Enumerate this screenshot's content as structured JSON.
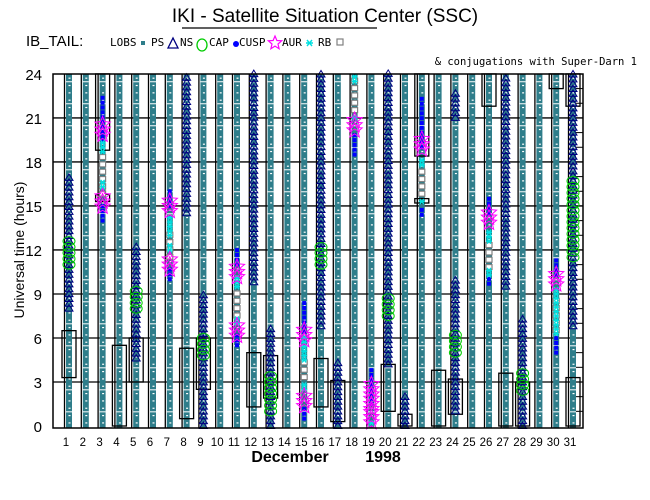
{
  "chart_data": {
    "type": "scatter",
    "title": "IKI - Satellite Situation Center (SSC)",
    "subtitle": "& conjugations with Super-Darn 1",
    "mission_label": "IB_TAIL:",
    "legend": [
      {
        "label": "LOBS",
        "symbol": "square-filled",
        "color": "#2e7d8a"
      },
      {
        "label": "PS",
        "symbol": "triangle",
        "color": "#000080"
      },
      {
        "label": "NS",
        "symbol": "circle",
        "color": "#00cc00"
      },
      {
        "label": "CAP",
        "symbol": "dot",
        "color": "#0000ff"
      },
      {
        "label": "CUSP",
        "symbol": "star",
        "color": "#ff00ff"
      },
      {
        "label": "AUR",
        "symbol": "asterisk",
        "color": "#00e0e0"
      },
      {
        "label": "RB",
        "symbol": "square-open",
        "color": "#808080"
      }
    ],
    "ylabel": "Universal time (hours)",
    "xlabel_month": "December",
    "xlabel_year": "1998",
    "xlim": [
      1,
      31
    ],
    "ylim": [
      0,
      24
    ],
    "yticks": [
      0,
      3,
      6,
      9,
      12,
      15,
      18,
      21,
      24
    ],
    "xticks": [
      1,
      2,
      3,
      4,
      5,
      6,
      7,
      8,
      9,
      10,
      11,
      12,
      13,
      14,
      15,
      16,
      17,
      18,
      19,
      20,
      21,
      22,
      23,
      24,
      25,
      26,
      27,
      28,
      29,
      30,
      31
    ],
    "grid": true,
    "lobs_days": [
      1,
      2,
      3,
      4,
      5,
      6,
      7,
      8,
      9,
      10,
      11,
      12,
      13,
      14,
      15,
      16,
      17,
      18,
      19,
      20,
      21,
      22,
      23,
      24,
      25,
      26,
      27,
      28,
      29,
      30,
      31
    ],
    "triangle_segments": [
      [
        1,
        8,
        17
      ],
      [
        5,
        4.6,
        12.2
      ],
      [
        8,
        14.5,
        24
      ],
      [
        9,
        0,
        9
      ],
      [
        12,
        9.8,
        24
      ],
      [
        13,
        0,
        6.9
      ],
      [
        16,
        6.8,
        24
      ],
      [
        17,
        0,
        4.6
      ],
      [
        20,
        4.2,
        24
      ],
      [
        21,
        0,
        2.2
      ],
      [
        24,
        21,
        22.8
      ],
      [
        24,
        1,
        10.2
      ],
      [
        27,
        9.5,
        24
      ],
      [
        28,
        0,
        7.5
      ],
      [
        31,
        6.8,
        24
      ]
    ],
    "circle_segments": [
      [
        1,
        11,
        12.7
      ],
      [
        5,
        8,
        9.3
      ],
      [
        9,
        4.8,
        6.2
      ],
      [
        13,
        1,
        3.5
      ],
      [
        16,
        11,
        12.5
      ],
      [
        20,
        7.5,
        9
      ],
      [
        24,
        5,
        6.3
      ],
      [
        28,
        2.4,
        3.6
      ],
      [
        31,
        11.5,
        17
      ]
    ],
    "dot_segments": [
      [
        3,
        19.4,
        22.5
      ],
      [
        3,
        14,
        15
      ],
      [
        7,
        15,
        16.2
      ],
      [
        7,
        10,
        10.8
      ],
      [
        11,
        11,
        12.3
      ],
      [
        11,
        5.5,
        6.3
      ],
      [
        15,
        6.4,
        8.5
      ],
      [
        15,
        0.5,
        1.2
      ],
      [
        18,
        18.5,
        20
      ],
      [
        19,
        1.5,
        4
      ],
      [
        22,
        19,
        22.5
      ],
      [
        22,
        14.4,
        15
      ],
      [
        26,
        14.5,
        15.7
      ],
      [
        26,
        9.7,
        10.2
      ],
      [
        30,
        10.3,
        11.5
      ],
      [
        30,
        5,
        6
      ]
    ],
    "star_points": [
      [
        3,
        20.2
      ],
      [
        3,
        15.3
      ],
      [
        7,
        15
      ],
      [
        7,
        11
      ],
      [
        11,
        10.5
      ],
      [
        11,
        6.5
      ],
      [
        15,
        6.2
      ],
      [
        15,
        1.7
      ],
      [
        18,
        20.5
      ],
      [
        19,
        0.6
      ],
      [
        19,
        1.5
      ],
      [
        19,
        2.5
      ],
      [
        22,
        19.2
      ],
      [
        26,
        14.2
      ],
      [
        30,
        10
      ]
    ],
    "asterisk_segments": [
      [
        3,
        18.7,
        19.3
      ],
      [
        3,
        16.3,
        16.7
      ],
      [
        7,
        13,
        14.2
      ],
      [
        7,
        12,
        12.3
      ],
      [
        11,
        9.5,
        10.2
      ],
      [
        11,
        7,
        7.3
      ],
      [
        15,
        4.5,
        6
      ],
      [
        15,
        2.5,
        3
      ],
      [
        18,
        23.5,
        24
      ],
      [
        18,
        21,
        21.2
      ],
      [
        19,
        0.2,
        0.4
      ],
      [
        22,
        17.8,
        18.2
      ],
      [
        22,
        15.3,
        15.5
      ],
      [
        26,
        12.6,
        13.3
      ],
      [
        26,
        10.3,
        10.7
      ],
      [
        30,
        6.3,
        9.5
      ]
    ],
    "rb_segments": [
      [
        3,
        15.8,
        18.3
      ],
      [
        7,
        11.5,
        13
      ],
      [
        11,
        7.5,
        9.3
      ],
      [
        15,
        3.3,
        4.5
      ],
      [
        18,
        21.5,
        23.5
      ],
      [
        22,
        15.8,
        17.5
      ],
      [
        26,
        10.8,
        12.5
      ],
      [
        30,
        6.5,
        8.6
      ]
    ],
    "box_segments": [
      [
        1,
        3.3,
        6.5
      ],
      [
        3,
        18.8,
        24
      ],
      [
        3,
        15.3,
        15.8
      ],
      [
        4,
        0,
        5.5
      ],
      [
        5,
        3,
        6
      ],
      [
        8,
        0.5,
        5.3
      ],
      [
        9,
        2.5,
        6
      ],
      [
        12,
        1.3,
        5
      ],
      [
        13,
        1.9,
        4.8
      ],
      [
        16,
        1.3,
        4.6
      ],
      [
        17,
        0.3,
        3.1
      ],
      [
        20,
        1,
        4.2
      ],
      [
        21,
        0,
        0.8
      ],
      [
        22,
        18.4,
        24
      ],
      [
        22,
        15.2,
        15.5
      ],
      [
        23,
        0,
        3.8
      ],
      [
        24,
        0.8,
        3.2
      ],
      [
        26,
        21.8,
        24
      ],
      [
        27,
        0,
        3.6
      ],
      [
        28,
        0,
        3
      ],
      [
        30,
        23,
        24
      ],
      [
        31,
        0,
        3.3
      ],
      [
        31,
        21.8,
        24
      ]
    ]
  }
}
